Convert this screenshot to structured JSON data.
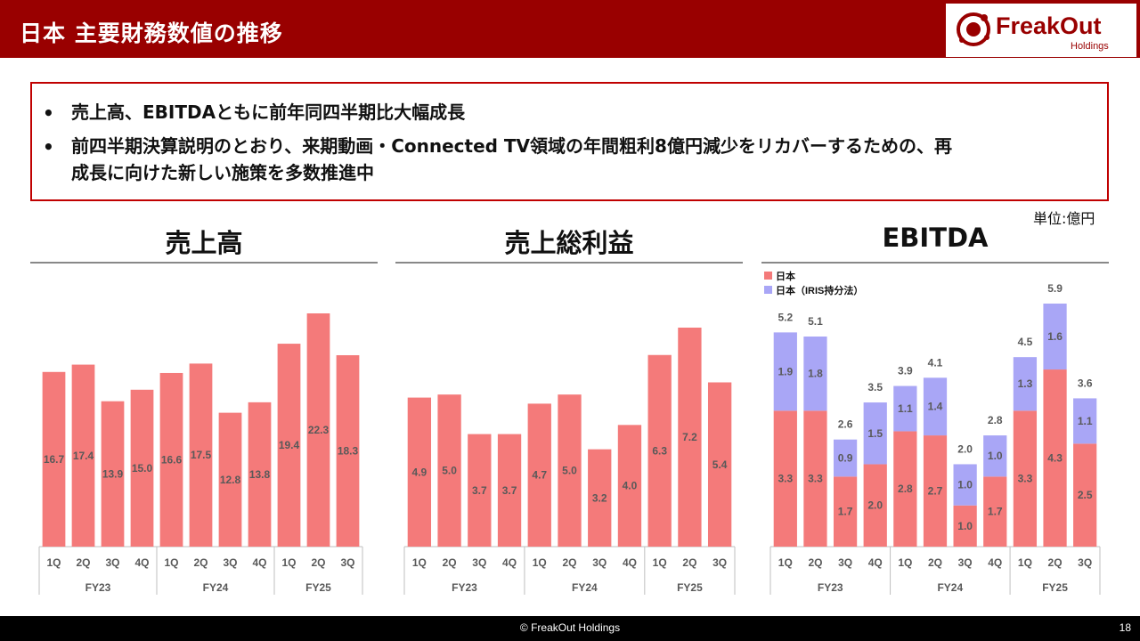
{
  "header": {
    "title": "日本 主要財務数値の推移",
    "logo_text": "FreakOut",
    "logo_sub": "Holdings"
  },
  "summary": {
    "bullet_char": "•",
    "items": [
      {
        "line1": "売上高、EBITDAともに前年同四半期比大幅成長"
      },
      {
        "line1": "前四半期決算説明のとおり、来期動画・Connected TV領域の年間粗利8億円減少をリカバーするための、再",
        "line2": "成長に向けた新しい施策を多数推進中"
      }
    ]
  },
  "unit_label": "単位:億円",
  "colors": {
    "japan": "#f47a7a",
    "iris": "#a9a6f6",
    "header": "#990000",
    "box_border": "#c00000"
  },
  "chart_data": [
    {
      "type": "bar",
      "title": "売上高",
      "categories": [
        "1Q",
        "2Q",
        "3Q",
        "4Q",
        "1Q",
        "2Q",
        "3Q",
        "4Q",
        "1Q",
        "2Q",
        "3Q"
      ],
      "groups": [
        {
          "label": "FY23",
          "count": 4
        },
        {
          "label": "FY24",
          "count": 4
        },
        {
          "label": "FY25",
          "count": 3
        }
      ],
      "series": [
        {
          "values": [
            16.7,
            17.4,
            13.9,
            15.0,
            16.6,
            17.5,
            12.8,
            13.8,
            19.4,
            22.3,
            18.3
          ]
        }
      ],
      "value_labels": [
        "16.7",
        "17.4",
        "13.9",
        "15.0",
        "16.6",
        "17.5",
        "12.8",
        "13.8",
        "19.4",
        "22.3",
        "18.3"
      ],
      "ylim": [
        0,
        23
      ]
    },
    {
      "type": "bar",
      "title": "売上総利益",
      "categories": [
        "1Q",
        "2Q",
        "3Q",
        "4Q",
        "1Q",
        "2Q",
        "3Q",
        "4Q",
        "1Q",
        "2Q",
        "3Q"
      ],
      "groups": [
        {
          "label": "FY23",
          "count": 4
        },
        {
          "label": "FY24",
          "count": 4
        },
        {
          "label": "FY25",
          "count": 3
        }
      ],
      "series": [
        {
          "values": [
            4.9,
            5.0,
            3.7,
            3.7,
            4.7,
            5.0,
            3.2,
            4.0,
            6.3,
            7.2,
            5.4
          ]
        }
      ],
      "value_labels": [
        "4.9",
        "5.0",
        "3.7",
        "3.7",
        "4.7",
        "5.0",
        "3.2",
        "4.0",
        "6.3",
        "7.2",
        "5.4"
      ],
      "ylim": [
        0,
        7.5
      ]
    },
    {
      "type": "bar",
      "stacked": true,
      "title": "EBITDA",
      "legend": [
        "日本",
        "日本（IRIS持分法）"
      ],
      "categories": [
        "1Q",
        "2Q",
        "3Q",
        "4Q",
        "1Q",
        "2Q",
        "3Q",
        "4Q",
        "1Q",
        "2Q",
        "3Q"
      ],
      "groups": [
        {
          "label": "FY23",
          "count": 4
        },
        {
          "label": "FY24",
          "count": 4
        },
        {
          "label": "FY25",
          "count": 3
        }
      ],
      "series": [
        {
          "name": "日本",
          "values": [
            3.3,
            3.3,
            1.7,
            2.0,
            2.8,
            2.7,
            1.0,
            1.7,
            3.3,
            4.3,
            2.5
          ],
          "labels": [
            "3.3",
            "3.3",
            "1.7",
            "2.0",
            "2.8",
            "2.7",
            "1.0",
            "1.7",
            "3.3",
            "4.3",
            "2.5"
          ]
        },
        {
          "name": "日本（IRIS持分法）",
          "values": [
            1.9,
            1.8,
            0.9,
            1.5,
            1.1,
            1.4,
            1.0,
            1.0,
            1.3,
            1.6,
            1.1
          ],
          "labels": [
            "1.9",
            "1.8",
            "0.9",
            "1.5",
            "1.1",
            "1.4",
            "1.0",
            "1.0",
            "1.3",
            "1.6",
            "1.1"
          ]
        }
      ],
      "totals": [
        5.2,
        5.1,
        2.6,
        3.5,
        3.9,
        4.1,
        2.0,
        2.8,
        4.5,
        5.9,
        3.6
      ],
      "total_labels": [
        "5.2",
        "5.1",
        "2.6",
        "3.5",
        "3.9",
        "4.1",
        "2.0",
        "2.8",
        "4.5",
        "5.9",
        "3.6"
      ],
      "ylim": [
        0,
        6.2
      ]
    }
  ],
  "footer": {
    "copyright": "© FreakOut Holdings",
    "page": "18"
  }
}
